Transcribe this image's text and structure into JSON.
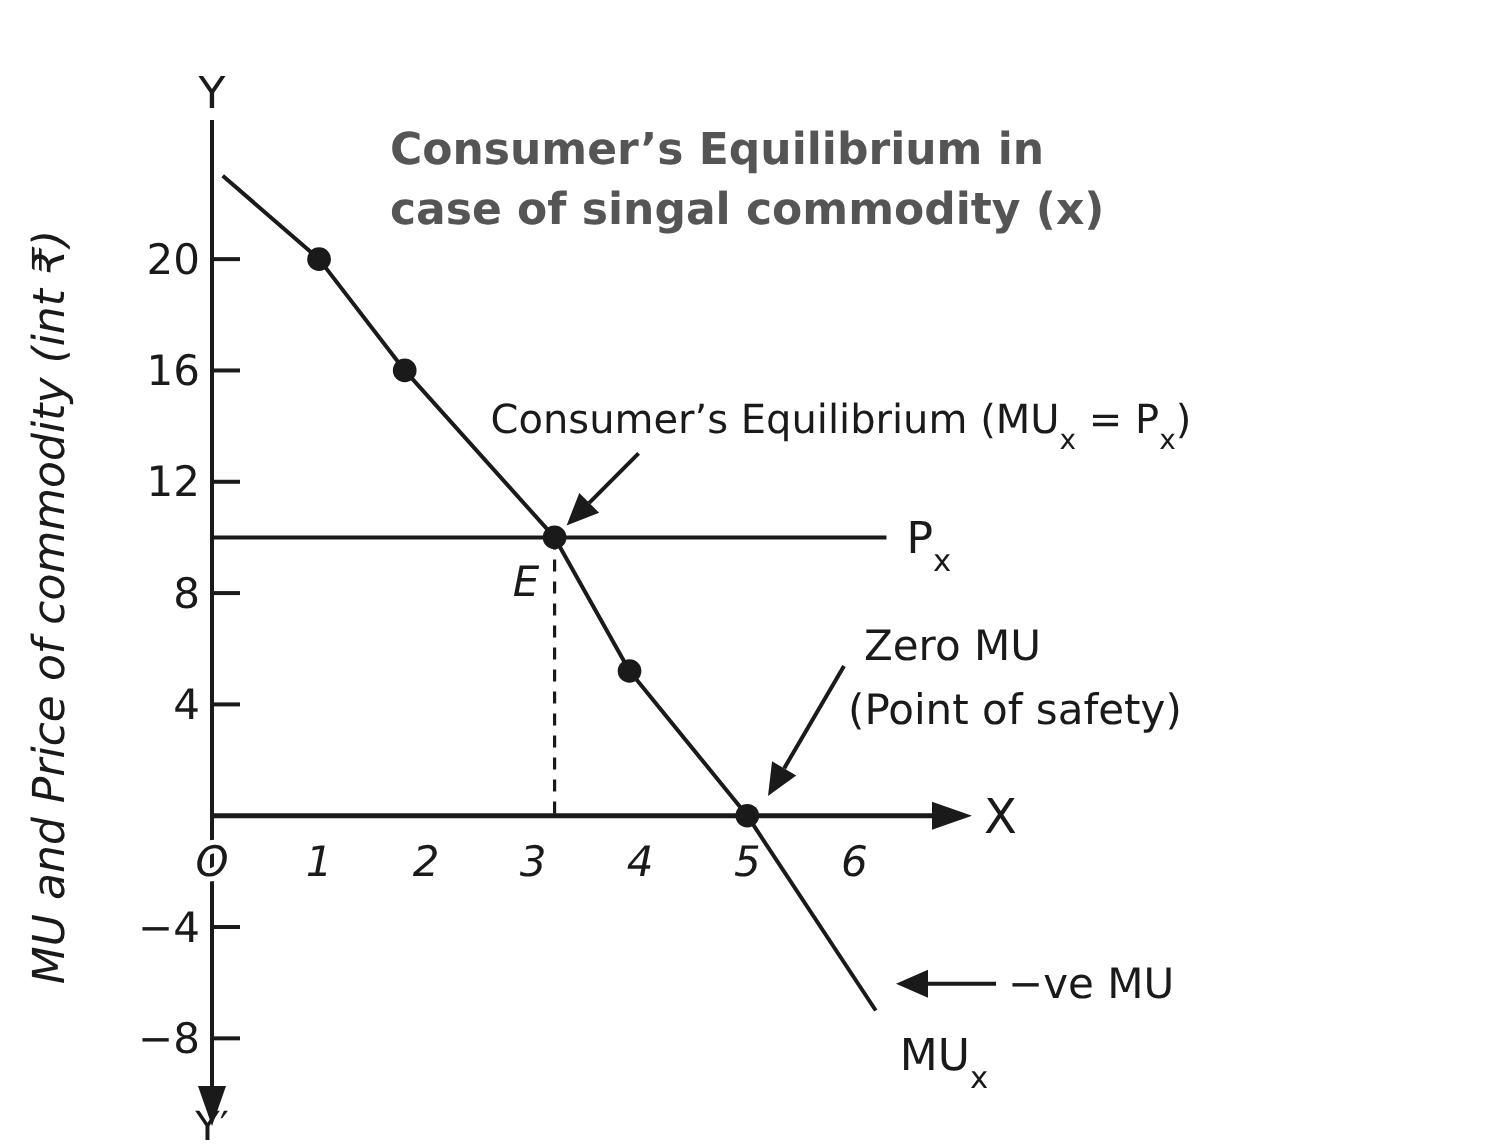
{
  "chart_data": {
    "type": "line",
    "title": "Consumer’s Equilibrium in case of singal commodity (x)",
    "xlabel": "X",
    "ylabel": "MU and Price of commodity (int ₹)",
    "xlim": [
      0,
      6.8
    ],
    "ylim": [
      -10,
      25
    ],
    "xticks": [
      {
        "value": 0,
        "label": "O"
      },
      1,
      2,
      3,
      4,
      5,
      6
    ],
    "yticks": [
      20,
      16,
      12,
      8,
      4,
      {
        "value": -4,
        "label": "−4"
      },
      {
        "value": -8,
        "label": "−8"
      }
    ],
    "grid": false,
    "series": [
      {
        "name": "MU$_{x}$",
        "color": "#1a1a1a",
        "marker": "none",
        "x": [
          0.1,
          1,
          1.8,
          3.2,
          3.9,
          5,
          6.2
        ],
        "values": [
          23,
          20,
          16,
          10,
          5.2,
          0,
          -7
        ]
      },
      {
        "name": "P$_{x}$",
        "color": "#1a1a1a",
        "marker": "none",
        "x": [
          0,
          6.3
        ],
        "values": [
          10,
          10
        ]
      },
      {
        "type": "line",
        "color": "#1a1a1a",
        "marker": "none",
        "line_style": "dashed",
        "x": [
          3.2,
          3.2
        ],
        "values": [
          10,
          0
        ]
      },
      {
        "type": "scatter",
        "color": "#1a1a1a",
        "marker": "circle",
        "x": [
          1,
          1.8,
          3.2,
          3.9,
          5
        ],
        "values": [
          20,
          16,
          10,
          5.2,
          0
        ]
      }
    ],
    "annotations": [
      "E",
      {
        "text": "Consumer’s Equilibrium (MU$_{x}$ = P$_{x}$)",
        "x": 3.2,
        "y": 10
      },
      "Zero MU (Point of safety)",
      "−ve MU",
      "Y",
      "Y′"
    ]
  }
}
